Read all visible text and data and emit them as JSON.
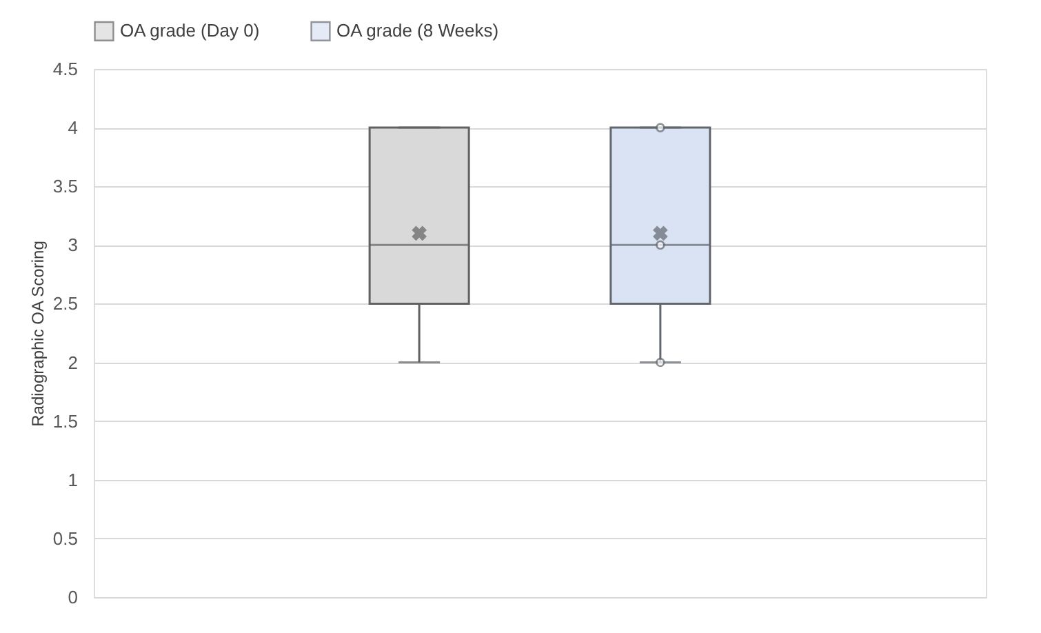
{
  "chart_data": {
    "type": "box",
    "ylabel": "Radiographic OA Scoring",
    "categories": [
      null
    ],
    "series": [
      {
        "name": "OA  grade (Day 0)",
        "color": "#d9d9d9",
        "boxes": [
          {
            "low": 2,
            "q1": 2.5,
            "median": 3,
            "q3": 4,
            "high": 4,
            "mean": 3.1
          }
        ]
      },
      {
        "name": "OA grade (8 Weeks)",
        "color": "#dae3f3",
        "boxes": [
          {
            "low": 2,
            "q1": 2.5,
            "median": 3,
            "q3": 4,
            "high": 4,
            "mean": 3.1,
            "outliers": [
              2,
              3,
              4
            ]
          }
        ]
      }
    ],
    "ylim": [
      0,
      4.5
    ],
    "yticks": [
      0,
      0.5,
      1,
      1.5,
      2,
      2.5,
      3,
      3.5,
      4,
      4.5
    ],
    "grid": "y",
    "legend": "top"
  }
}
